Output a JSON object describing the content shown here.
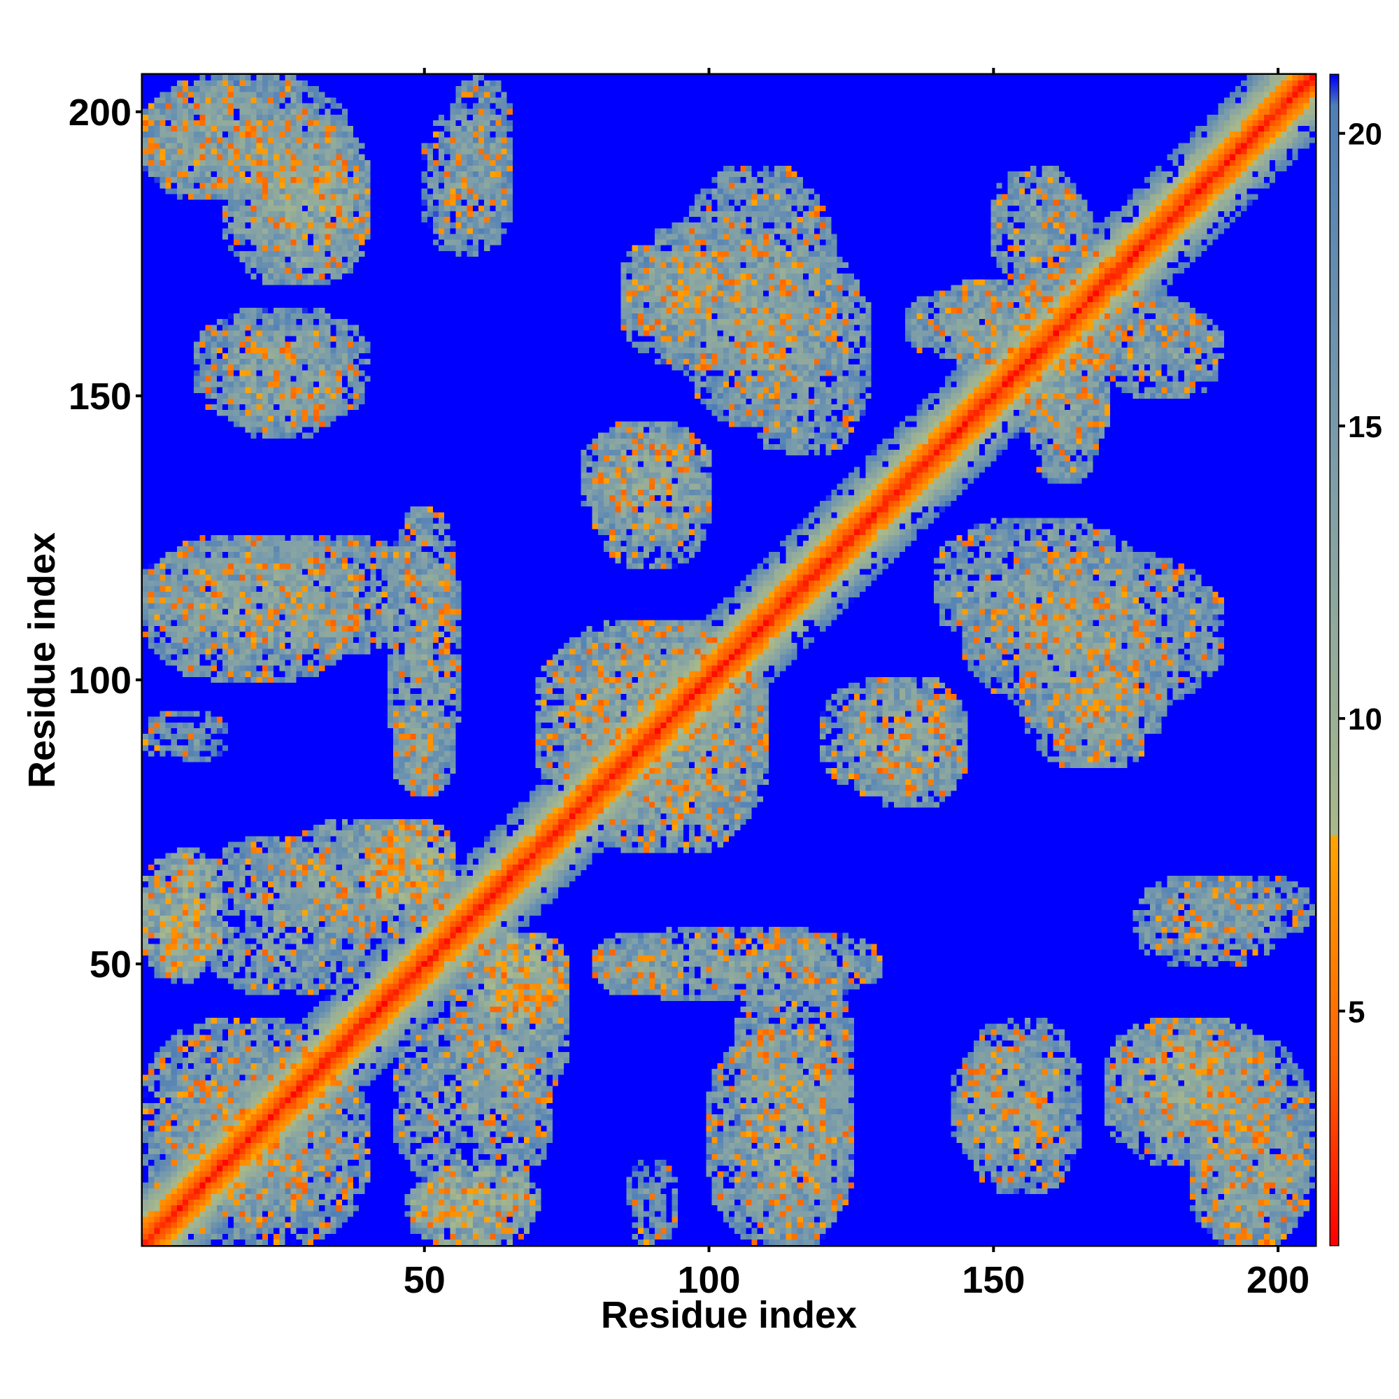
{
  "chart_data": {
    "type": "heatmap",
    "title": "",
    "xlabel": "Residue index",
    "ylabel": "Residue index",
    "xlim": [
      1,
      206
    ],
    "ylim": [
      1,
      206
    ],
    "x_ticks": [
      50,
      100,
      150,
      200
    ],
    "y_ticks": [
      50,
      100,
      150,
      200
    ],
    "colorbar": {
      "range": [
        1,
        21
      ],
      "ticks": [
        5,
        10,
        15,
        20
      ],
      "colors": [
        {
          "value": 1,
          "color": "#ff0000"
        },
        {
          "value": 4,
          "color": "#ff6000"
        },
        {
          "value": 8,
          "color": "#ffa500"
        },
        {
          "value": 8.01,
          "color": "#a9b98a"
        },
        {
          "value": 14,
          "color": "#7f9fa8"
        },
        {
          "value": 20.5,
          "color": "#4f7fb8"
        },
        {
          "value": 21,
          "color": "#0000ff"
        }
      ]
    },
    "diagonal_band_width": 7,
    "contact_blocks": [
      {
        "x": [
          1,
          36
        ],
        "y": [
          185,
          206
        ],
        "value": 12
      },
      {
        "x": [
          20,
          40
        ],
        "y": [
          170,
          195
        ],
        "value": 11
      },
      {
        "x": [
          55,
          65
        ],
        "y": [
          185,
          206
        ],
        "value": 13
      },
      {
        "x": [
          15,
          35
        ],
        "y": [
          143,
          162
        ],
        "value": 12
      },
      {
        "x": [
          1,
          38
        ],
        "y": [
          100,
          125
        ],
        "value": 12
      },
      {
        "x": [
          1,
          15
        ],
        "y": [
          86,
          94
        ],
        "value": 14
      },
      {
        "x": [
          1,
          12
        ],
        "y": [
          47,
          68
        ],
        "value": 11
      },
      {
        "x": [
          10,
          40
        ],
        "y": [
          45,
          72
        ],
        "value": 12
      },
      {
        "x": [
          40,
          55
        ],
        "y": [
          60,
          75
        ],
        "value": 8
      },
      {
        "x": [
          1,
          35
        ],
        "y": [
          5,
          40
        ],
        "value": 12
      },
      {
        "x": [
          48,
          70
        ],
        "y": [
          1,
          14
        ],
        "value": 9
      },
      {
        "x": [
          44,
          56
        ],
        "y": [
          80,
          130
        ],
        "value": 12
      },
      {
        "x": [
          55,
          75
        ],
        "y": [
          25,
          55
        ],
        "value": 11
      },
      {
        "x": [
          62,
          72
        ],
        "y": [
          40,
          48
        ],
        "value": 7
      },
      {
        "x": [
          80,
          95
        ],
        "y": [
          45,
          55
        ],
        "value": 12
      },
      {
        "x": [
          105,
          125
        ],
        "y": [
          1,
          55
        ],
        "value": 12
      },
      {
        "x": [
          85,
          115
        ],
        "y": [
          155,
          180
        ],
        "value": 12
      },
      {
        "x": [
          105,
          128
        ],
        "y": [
          140,
          175
        ],
        "value": 12
      },
      {
        "x": [
          80,
          100
        ],
        "y": [
          120,
          145
        ],
        "value": 12
      },
      {
        "x": [
          70,
          110
        ],
        "y": [
          75,
          110
        ],
        "value": 11
      },
      {
        "x": [
          125,
          145
        ],
        "y": [
          78,
          100
        ],
        "value": 11
      },
      {
        "x": [
          140,
          160
        ],
        "y": [
          155,
          170
        ],
        "value": 12
      },
      {
        "x": [
          155,
          170
        ],
        "y": [
          135,
          185
        ],
        "value": 12
      },
      {
        "x": [
          145,
          190
        ],
        "y": [
          95,
          122
        ],
        "value": 12
      },
      {
        "x": [
          162,
          175
        ],
        "y": [
          85,
          100
        ],
        "value": 12
      },
      {
        "x": [
          175,
          200
        ],
        "y": [
          50,
          65
        ],
        "value": 13
      },
      {
        "x": [
          145,
          165
        ],
        "y": [
          10,
          40
        ],
        "value": 12
      },
      {
        "x": [
          170,
          200
        ],
        "y": [
          15,
          40
        ],
        "value": 11
      },
      {
        "x": [
          185,
          205
        ],
        "y": [
          1,
          25
        ],
        "value": 12
      },
      {
        "x": [
          170,
          190
        ],
        "y": [
          150,
          165
        ],
        "value": 12
      }
    ]
  }
}
